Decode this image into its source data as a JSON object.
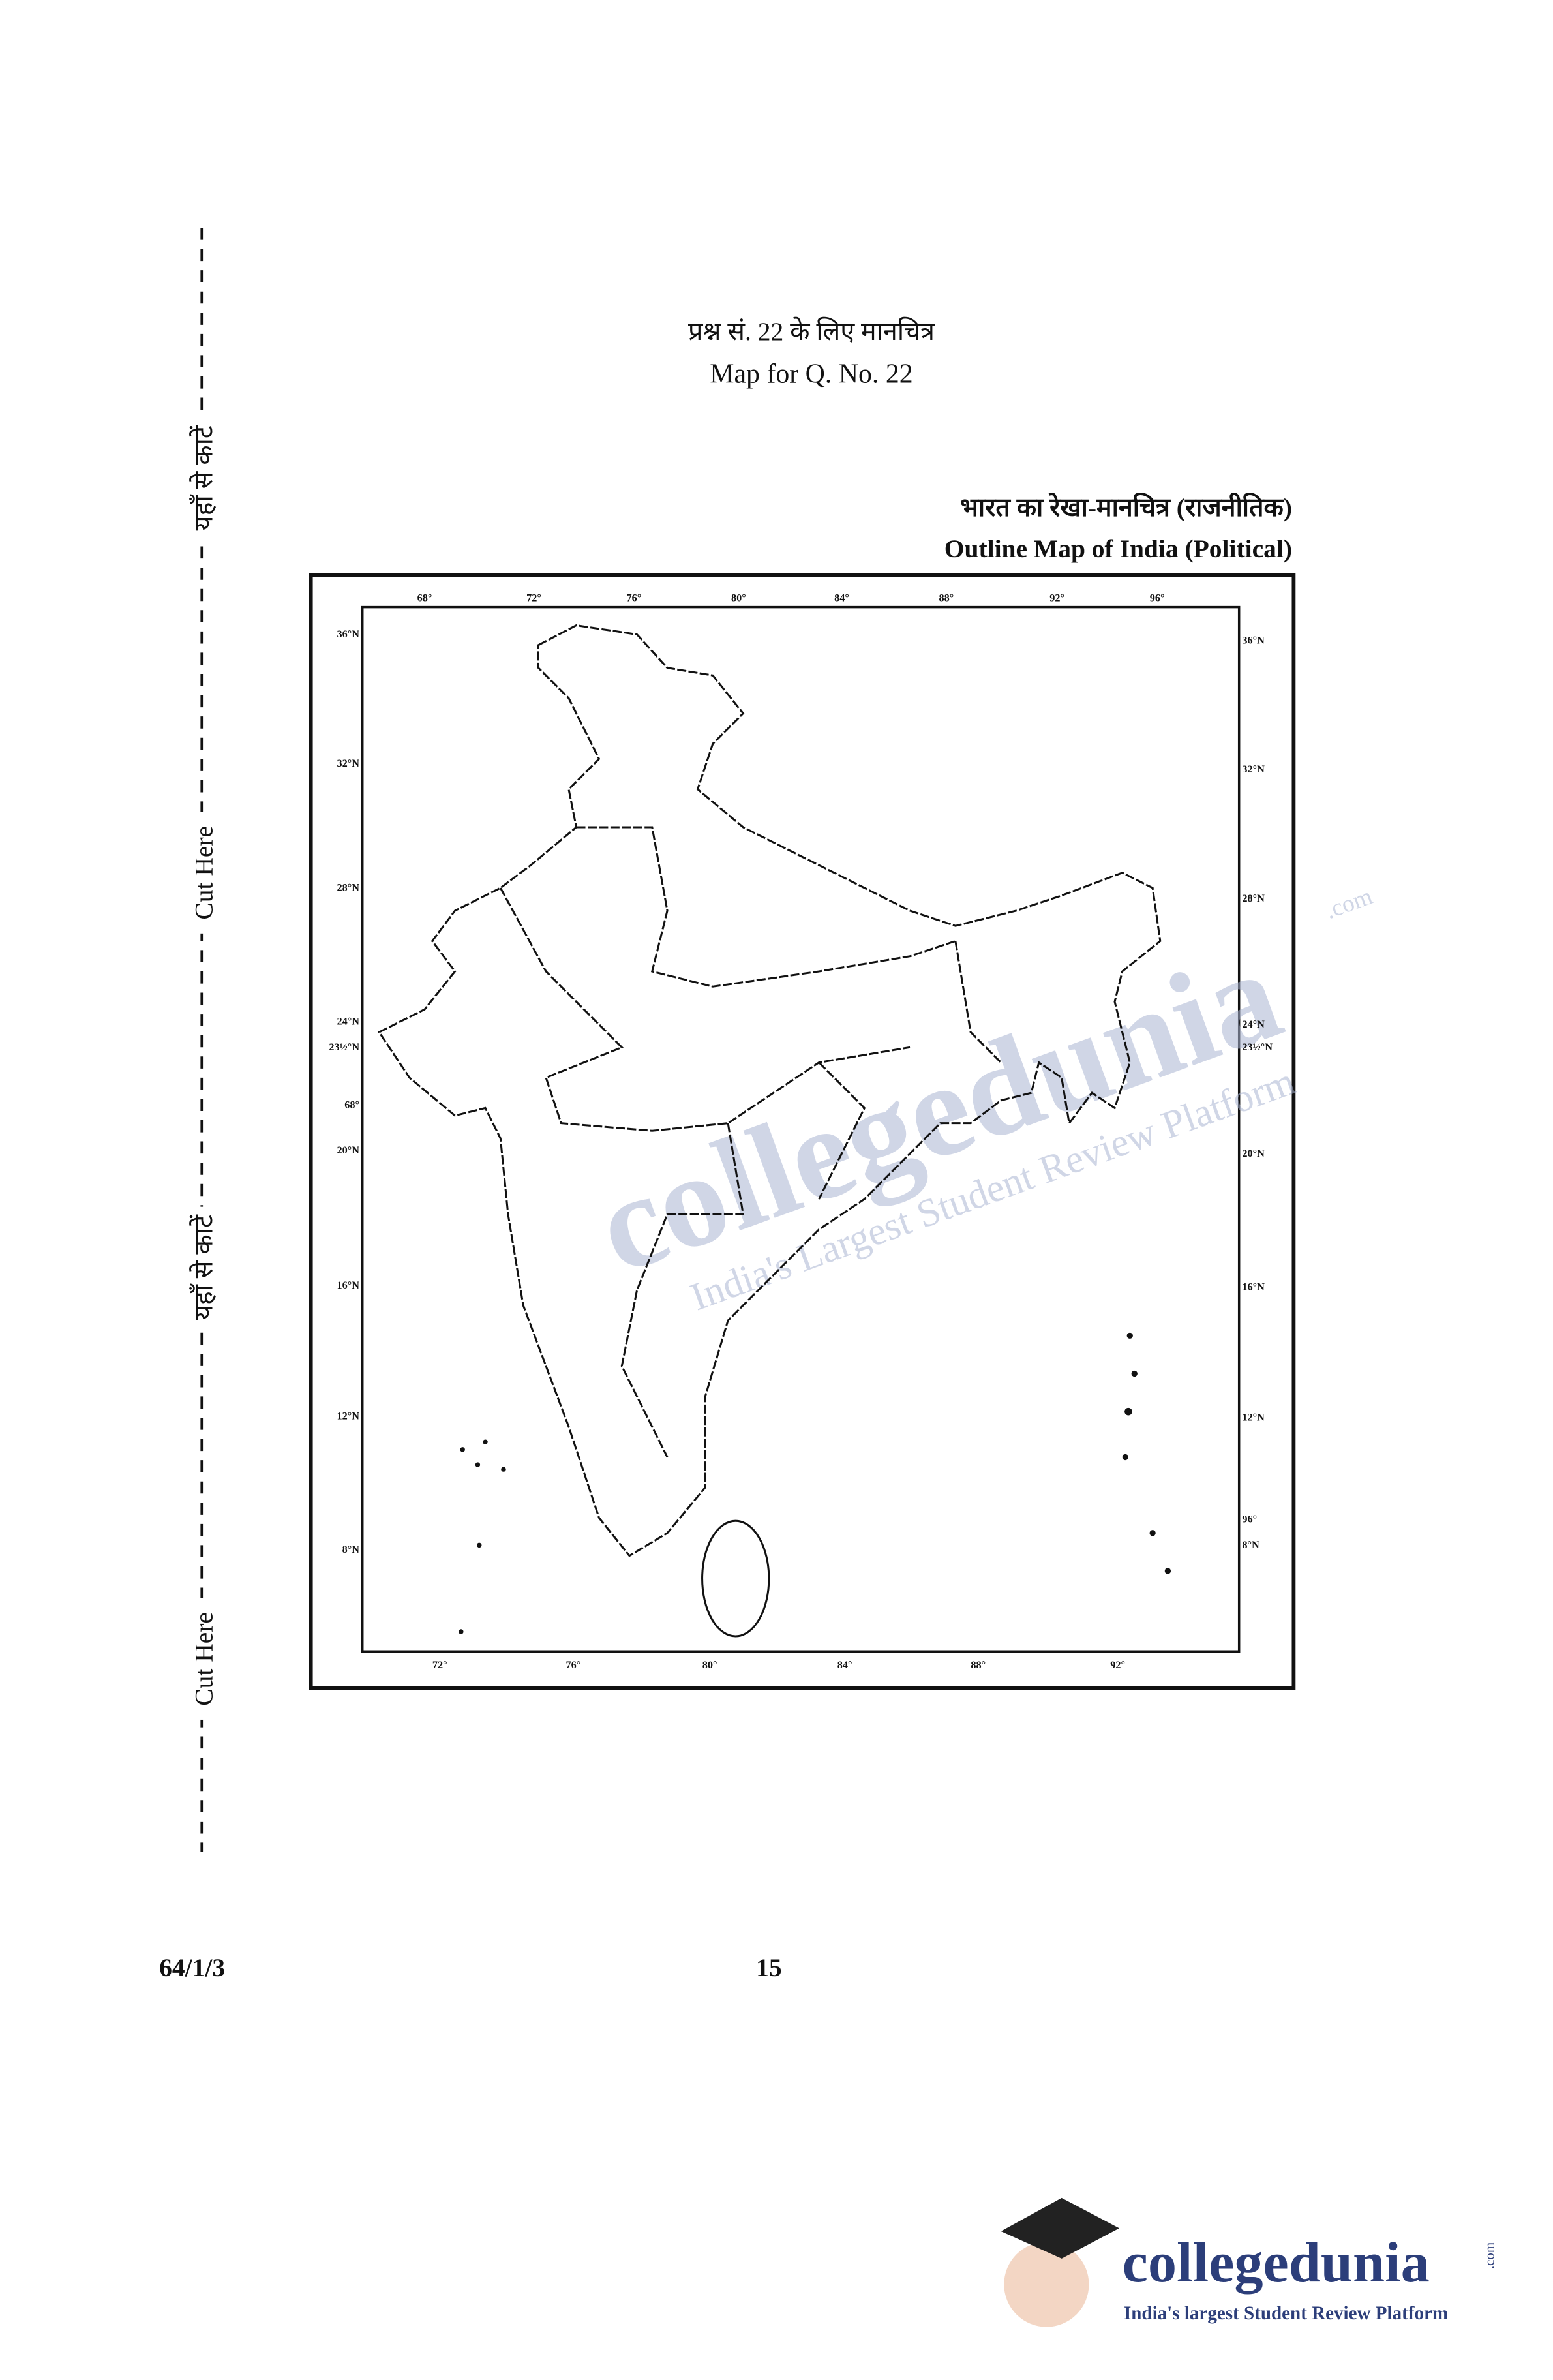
{
  "header": {
    "hindi": "प्रश्न सं. 22 के लिए मानचित्र",
    "english": "Map for Q. No. 22"
  },
  "map": {
    "title_hindi": "भारत का रेखा-मानचित्र (राजनीतिक)",
    "title_english": "Outline Map of India (Political)",
    "top_labels": [
      "68°",
      "72°",
      "76°",
      "80°",
      "84°",
      "88°",
      "92°",
      "96°"
    ],
    "bottom_labels": [
      "72°",
      "76°",
      "80°",
      "84°",
      "88°",
      "92°"
    ],
    "left_labels": [
      "36°N",
      "32°N",
      "28°N",
      "24°N",
      "23½°N",
      "68°",
      "20°N",
      "16°N",
      "12°N",
      "8°N"
    ],
    "right_labels": [
      "36°N",
      "32°N",
      "28°N",
      "24°N",
      "23½°N",
      "20°N",
      "16°N",
      "12°N",
      "96°",
      "8°N"
    ]
  },
  "cut_marks": [
    "यहाँ से काटें",
    "Cut Here",
    "यहाँ से काटें",
    "Cut Here"
  ],
  "footer": {
    "code": "64/1/3",
    "page": "15"
  },
  "watermark": {
    "brand": "collegedunia",
    "tld": ".com",
    "tagline": "India's Largest Student Review Platform"
  },
  "logo": {
    "brand": "collegedunia",
    "tld": ".com",
    "tagline": "India's largest Student Review Platform"
  }
}
